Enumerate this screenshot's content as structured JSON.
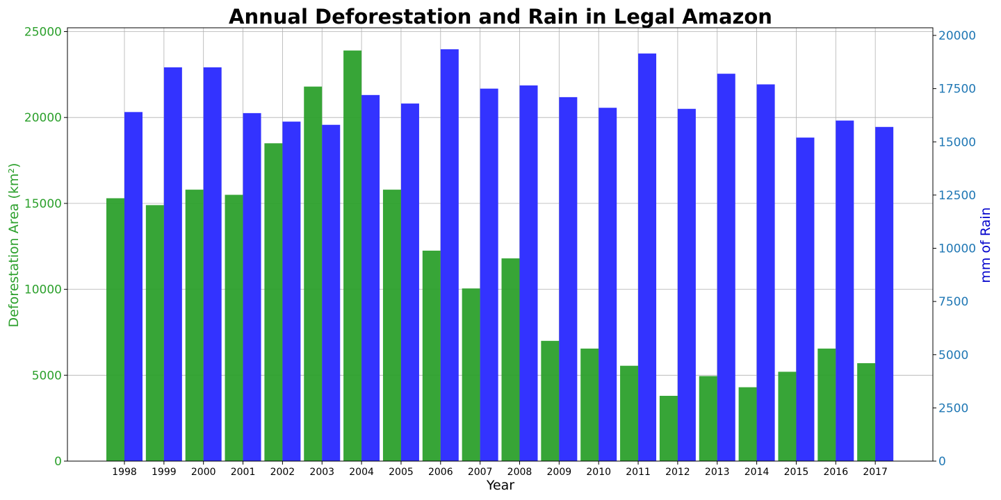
{
  "chart_data": {
    "type": "bar",
    "title": "Annual Deforestation and Rain in Legal Amazon",
    "xlabel": "Year",
    "ylabel_left": "Deforestation Area (km²)",
    "ylabel_right": "mm of Rain",
    "categories": [
      "1998",
      "1999",
      "2000",
      "2001",
      "2002",
      "2003",
      "2004",
      "2005",
      "2006",
      "2007",
      "2008",
      "2009",
      "2010",
      "2011",
      "2012",
      "2013",
      "2014",
      "2015",
      "2016",
      "2017"
    ],
    "series": [
      {
        "name": "Deforestation",
        "axis": "left",
        "color": "#2ca02c",
        "values": [
          15300,
          14900,
          15800,
          15500,
          18500,
          21800,
          23900,
          15800,
          12250,
          10050,
          11800,
          7000,
          6550,
          5550,
          3800,
          4950,
          4300,
          5200,
          6550,
          5700
        ]
      },
      {
        "name": "Rain",
        "axis": "right",
        "color": "#3333ff",
        "values": [
          16400,
          18500,
          18500,
          16350,
          15950,
          15800,
          17200,
          16800,
          19350,
          17500,
          17650,
          17100,
          16600,
          19150,
          16550,
          18200,
          17700,
          15200,
          16000,
          15700
        ]
      }
    ],
    "ylim_left": [
      0,
      25000
    ],
    "ylim_right": [
      0,
      20000
    ],
    "yticks_left": [
      0,
      5000,
      10000,
      15000,
      20000,
      25000
    ],
    "yticks_right": [
      0,
      2500,
      5000,
      7500,
      10000,
      12500,
      15000,
      17500,
      20000
    ],
    "grid": true,
    "legend": "none"
  }
}
